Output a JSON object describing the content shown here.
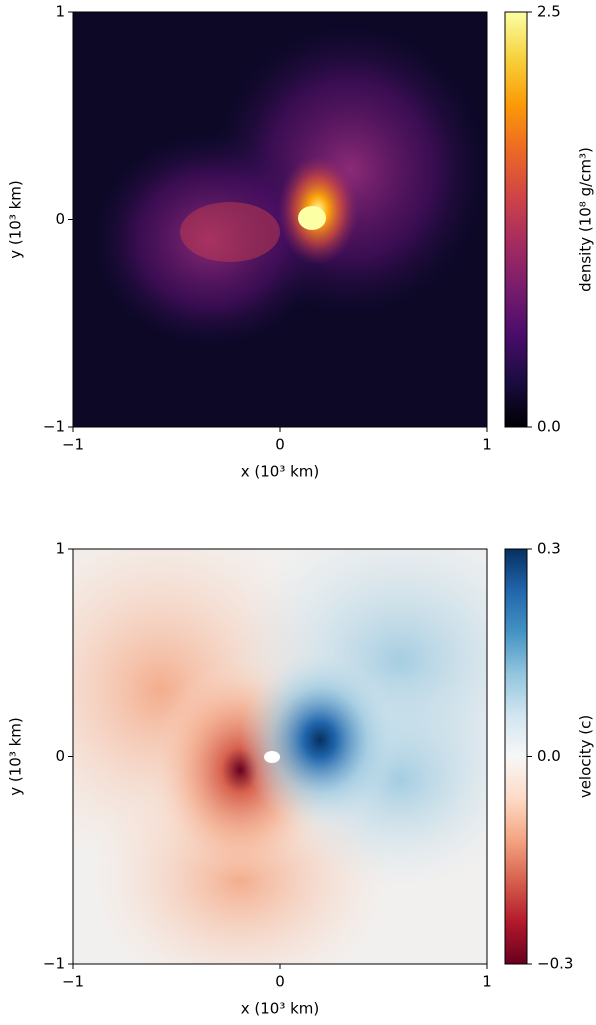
{
  "chart_data": [
    {
      "type": "heatmap",
      "xlabel": "x (10³ km)",
      "ylabel": "y (10³ km)",
      "xlim": [
        -1,
        1
      ],
      "xticks": [
        {
          "value": -1,
          "label": "−1"
        },
        0,
        1
      ],
      "ylim": [
        -1,
        1
      ],
      "yticks": [
        {
          "value": -1,
          "label": "−1"
        },
        0,
        1
      ],
      "colormap": "inferno",
      "colorbar_label": "density (10⁸ g/cm³)",
      "clim": [
        0,
        2.5
      ],
      "cticks": [
        {
          "value": 0,
          "label": "0.0"
        },
        {
          "value": 2.5,
          "label": "2.5"
        }
      ]
    },
    {
      "type": "heatmap",
      "xlabel": "x (10³ km)",
      "ylabel": "y (10³ km)",
      "xlim": [
        -1,
        1
      ],
      "xticks": [
        {
          "value": -1,
          "label": "−1"
        },
        0,
        1
      ],
      "ylim": [
        -1,
        1
      ],
      "yticks": [
        {
          "value": -1,
          "label": "−1"
        },
        0,
        1
      ],
      "colormap": "RdBu",
      "colorbar_label": "velocity (c)",
      "clim": [
        -0.3,
        0.3
      ],
      "cticks": [
        {
          "value": -0.3,
          "label": "−0.3"
        },
        {
          "value": 0,
          "label": "0.0"
        },
        {
          "value": 0.3,
          "label": "0.3"
        }
      ]
    }
  ]
}
